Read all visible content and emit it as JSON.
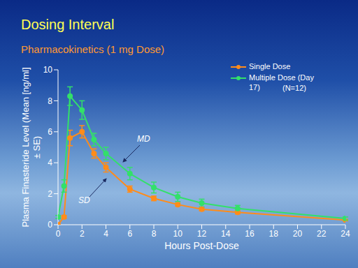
{
  "chart_data": {
    "type": "line",
    "title": "Dosing Interval",
    "subtitle": "Pharmacokinetics (1 mg Dose)",
    "x_label": "Hours Post-Dose",
    "y_label": "Plasma Finasteride Level (Mean [ng/ml] ± SE)",
    "x": [
      0,
      0.5,
      1,
      2,
      3,
      4,
      6,
      8,
      10,
      12,
      15,
      24
    ],
    "series": [
      {
        "name": "Single Dose",
        "color": "#ff8c1a",
        "marker": "circle",
        "line_style": "solid",
        "values": [
          0,
          0.5,
          5.6,
          6.0,
          4.6,
          3.7,
          2.3,
          1.7,
          1.3,
          1.0,
          0.8,
          0.3
        ],
        "errors": [
          0,
          0.1,
          0.5,
          0.4,
          0.3,
          0.3,
          0.2,
          0.15,
          0.1,
          0.1,
          0.1,
          0.05
        ]
      },
      {
        "name": "Multiple Dose (Day 17)",
        "color": "#33e06a",
        "marker": "circle",
        "line_style": "solid",
        "values": [
          0.5,
          2.5,
          8.3,
          7.4,
          5.5,
          4.6,
          3.3,
          2.4,
          1.8,
          1.4,
          1.05,
          0.4
        ],
        "errors": [
          0.1,
          0.4,
          0.6,
          0.6,
          0.4,
          0.4,
          0.4,
          0.35,
          0.3,
          0.25,
          0.2,
          0.1
        ]
      }
    ],
    "xlim": [
      0,
      24
    ],
    "xticks": [
      0,
      2,
      4,
      6,
      8,
      10,
      12,
      14,
      16,
      18,
      20,
      22,
      24
    ],
    "ylim": [
      0,
      10
    ],
    "yticks": [
      0,
      2,
      4,
      6,
      8,
      10
    ],
    "grid": false,
    "legend": "top-right",
    "annotations": [
      "MD",
      "SD",
      "(N=12)"
    ]
  }
}
